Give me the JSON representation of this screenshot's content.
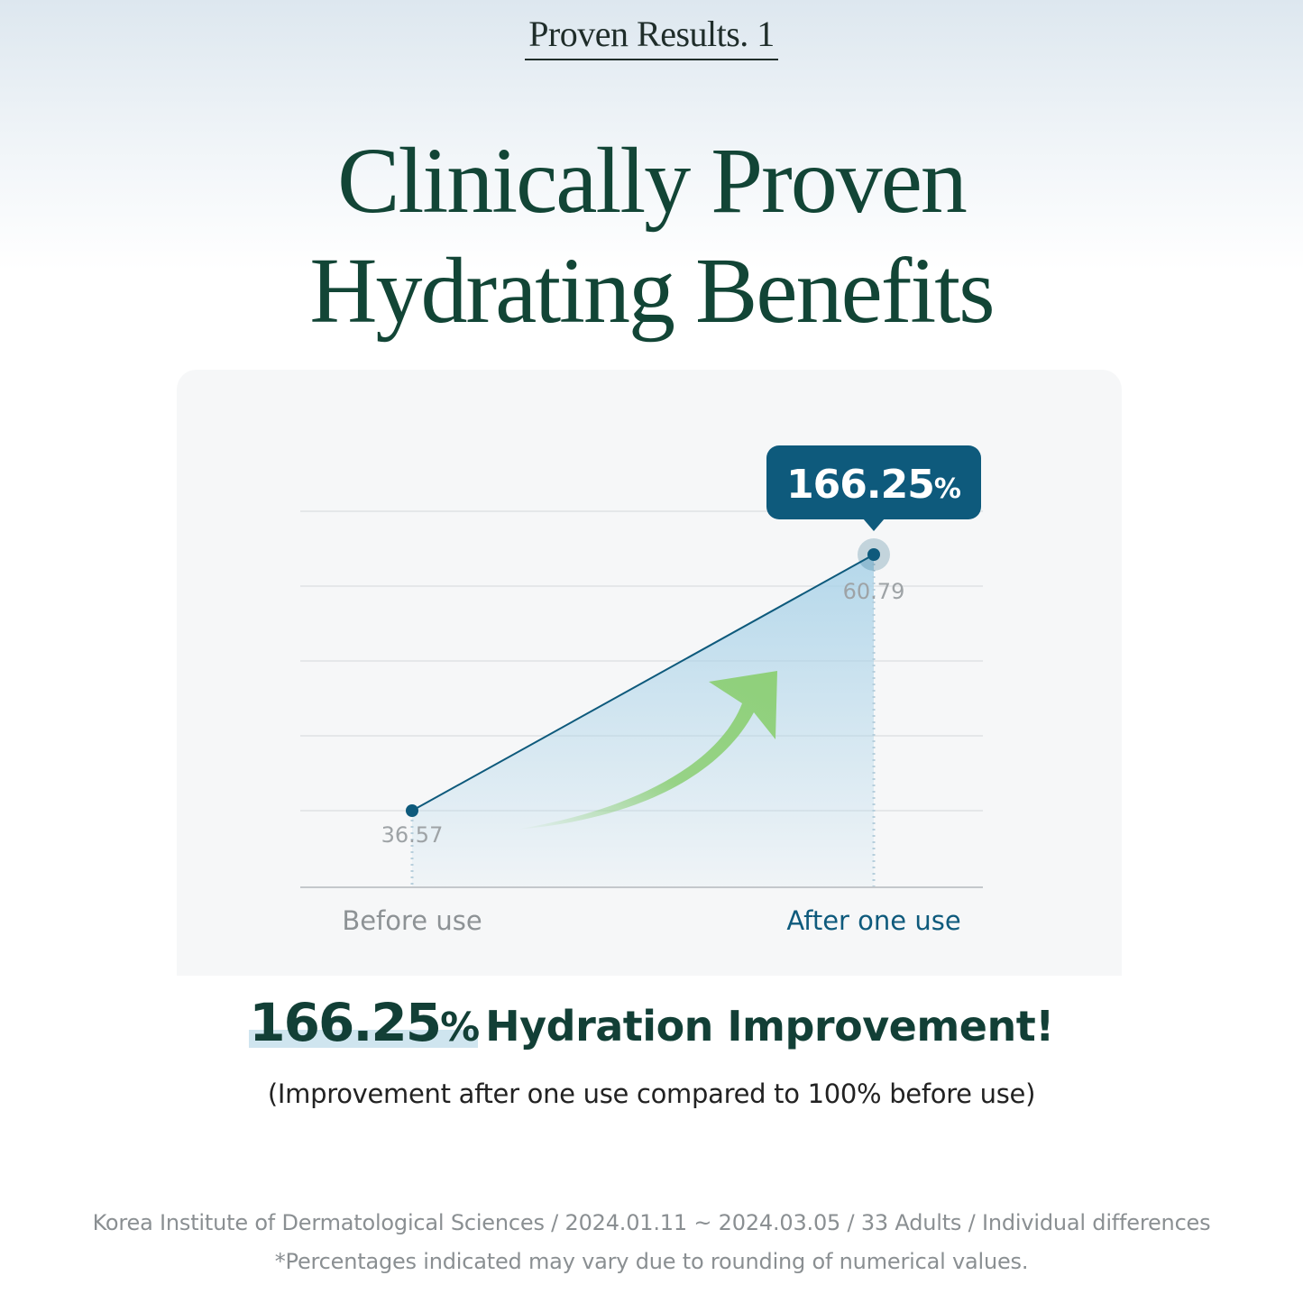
{
  "kicker": "Proven Results. 1",
  "headline": {
    "line1": "Clinically Proven",
    "line2": "Hydrating Benefits"
  },
  "colors": {
    "brand_green": "#124536",
    "accent_blue": "#0e5a7c",
    "arrow_green": "#8fd07a",
    "area_blue": "#a9d2e8"
  },
  "chart_data": {
    "type": "line",
    "categories": [
      "Before use",
      "After one use"
    ],
    "values": [
      36.57,
      60.79
    ],
    "value_labels": [
      "36.57",
      "60.79"
    ],
    "callout": "166.25",
    "callout_unit": "%",
    "ylim": [
      30,
      65
    ],
    "grid": true,
    "title": "",
    "xlabel": "",
    "ylabel": ""
  },
  "result": {
    "percent": "166.25",
    "unit": "%",
    "text": "Hydration Improvement!"
  },
  "subtitle": "(Improvement after one use compared to 100% before use)",
  "footnotes": [
    "Korea Institute of Dermatological Sciences / 2024.01.11 ~ 2024.03.05 / 33 Adults / Individual differences",
    "*Percentages indicated may vary due to rounding of numerical values."
  ]
}
